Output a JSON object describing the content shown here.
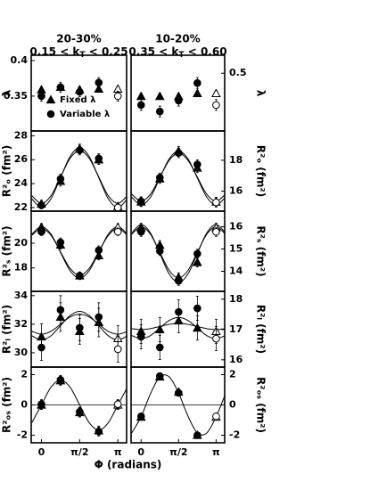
{
  "chart_data": [
    {
      "type": "scatter",
      "title": "20-30%",
      "subtitle": [
        "0.15 < k",
        "T",
        " < 0.25"
      ],
      "ylabel": "λ",
      "yaxis_side": "left",
      "x": [
        0,
        0.785,
        1.571,
        2.356,
        3.142
      ],
      "xlim": [
        -0.42,
        3.5
      ],
      "ylim": [
        0.301,
        0.4075
      ],
      "yticks": [
        0.35,
        0.4
      ],
      "legend": "lower left",
      "series": [
        {
          "name": "Fixed λ",
          "marker": "triangle",
          "color": "#000000",
          "values": [
            0.359,
            0.3625,
            0.359,
            0.36,
            0.36
          ],
          "errors": [
            0.004,
            0.004,
            0.004,
            0.004,
            0.004
          ]
        },
        {
          "name": "Variable λ",
          "marker": "circle",
          "color": "#000000",
          "values": [
            0.35,
            0.3625,
            0.356,
            0.369,
            0.35
          ],
          "errors": [
            0.007,
            0.007,
            0.007,
            0.007,
            0.007
          ]
        }
      ]
    },
    {
      "type": "scatter",
      "title": "10-20%",
      "subtitle": [
        "0.35 < k",
        "T",
        " < 0.60"
      ],
      "ylabel": "λ",
      "yaxis_side": "right",
      "x": [
        0,
        0.785,
        1.571,
        2.356,
        3.142
      ],
      "xlim": [
        -0.42,
        3.5
      ],
      "ylim": [
        0.34,
        0.55
      ],
      "yticks": [
        0.5
      ],
      "series": [
        {
          "marker": "triangle",
          "color": "#000000",
          "values": [
            0.436,
            0.436,
            0.436,
            0.444,
            0.444
          ],
          "errors": [
            0.008,
            0.008,
            0.008,
            0.008,
            0.008
          ]
        },
        {
          "marker": "circle",
          "color": "#000000",
          "values": [
            0.412,
            0.394,
            0.424,
            0.473,
            0.412
          ],
          "errors": [
            0.015,
            0.015,
            0.015,
            0.015,
            0.015
          ]
        }
      ]
    },
    {
      "type": "scatter",
      "ylabel": "R²ₒ (fm²)",
      "yaxis_side": "left",
      "x": [
        0,
        0.785,
        1.571,
        2.356,
        3.142
      ],
      "xlim": [
        -0.42,
        3.5
      ],
      "ylim": [
        21.7,
        28.4
      ],
      "yticks": [
        22,
        24,
        26,
        28
      ],
      "series": [
        {
          "marker": "triangle",
          "color": "#000000",
          "values": [
            22.3,
            24.2,
            26.9,
            26.0,
            22.1
          ],
          "errors": [
            0.3,
            0.4,
            0.4,
            0.4,
            0.3
          ]
        },
        {
          "marker": "circle",
          "color": "#000000",
          "values": [
            22.2,
            24.4,
            26.8,
            26.1,
            22.0
          ],
          "errors": [
            0.3,
            0.4,
            0.4,
            0.4,
            0.3
          ]
        }
      ],
      "fits": [
        {
          "color": "#000000",
          "x": [
            -0.393,
            0,
            0.393,
            0.785,
            1.178,
            1.571,
            1.963,
            2.356,
            2.749,
            3.142,
            3.534
          ],
          "values": [
            22.99,
            22.35,
            22.99,
            24.55,
            26.11,
            26.75,
            26.11,
            24.55,
            22.99,
            22.35,
            22.99
          ]
        },
        {
          "color": "#000000",
          "x": [
            -0.393,
            0,
            0.393,
            0.785,
            1.178,
            1.571,
            1.963,
            2.356,
            2.749,
            3.142,
            3.534
          ],
          "values": [
            22.73,
            22.0,
            22.73,
            24.5,
            26.27,
            27.0,
            26.27,
            24.5,
            22.73,
            22.0,
            22.73
          ]
        }
      ]
    },
    {
      "type": "scatter",
      "ylabel": "R²ₒ (fm²)",
      "yaxis_side": "right",
      "x": [
        0,
        0.785,
        1.571,
        2.356,
        3.142
      ],
      "xlim": [
        -0.42,
        3.5
      ],
      "ylim": [
        14.7,
        19.9
      ],
      "yticks": [
        16,
        18
      ],
      "series": [
        {
          "marker": "triangle",
          "color": "#000000",
          "values": [
            15.3,
            16.8,
            18.6,
            17.5,
            15.3
          ],
          "errors": [
            0.3,
            0.3,
            0.3,
            0.3,
            0.3
          ]
        },
        {
          "marker": "circle",
          "color": "#000000",
          "values": [
            15.33,
            16.87,
            18.47,
            17.73,
            15.27
          ],
          "errors": [
            0.3,
            0.3,
            0.3,
            0.3,
            0.3
          ]
        }
      ],
      "fits": [
        {
          "color": "#000000",
          "x": [
            -0.393,
            0,
            0.393,
            0.785,
            1.178,
            1.571,
            1.963,
            2.356,
            2.749,
            3.142,
            3.534
          ],
          "values": [
            15.8,
            15.35,
            15.8,
            16.9,
            18.0,
            18.45,
            18.0,
            16.9,
            15.8,
            15.35,
            15.8
          ]
        },
        {
          "color": "#000000",
          "x": [
            -0.393,
            0,
            0.393,
            0.785,
            1.178,
            1.571,
            1.963,
            2.356,
            2.749,
            3.142,
            3.534
          ],
          "values": [
            15.61,
            15.1,
            15.61,
            16.85,
            18.09,
            18.6,
            18.09,
            16.85,
            15.61,
            15.1,
            15.61
          ]
        }
      ]
    },
    {
      "type": "scatter",
      "ylabel": "R²ₛ (fm²)",
      "yaxis_side": "left",
      "x": [
        0,
        0.785,
        1.571,
        2.356,
        3.142
      ],
      "xlim": [
        -0.42,
        3.5
      ],
      "ylim": [
        16.1,
        22.6
      ],
      "yticks": [
        18,
        20
      ],
      "series": [
        {
          "marker": "triangle",
          "color": "#000000",
          "values": [
            21.29,
            19.86,
            17.36,
            19.0,
            21.29
          ],
          "errors": [
            0.3,
            0.35,
            0.3,
            0.35,
            0.3
          ]
        },
        {
          "marker": "circle",
          "color": "#000000",
          "values": [
            20.93,
            20.07,
            17.36,
            19.43,
            20.93
          ],
          "errors": [
            0.3,
            0.35,
            0.3,
            0.35,
            0.3
          ]
        }
      ],
      "fits": [
        {
          "color": "#000000",
          "x": [
            -0.393,
            0,
            0.393,
            0.785,
            1.178,
            1.571,
            1.963,
            2.356,
            2.749,
            3.142,
            3.534
          ],
          "values": [
            20.64,
            21.2,
            20.64,
            19.3,
            17.96,
            17.4,
            17.96,
            19.3,
            20.64,
            21.2,
            20.64
          ]
        },
        {
          "color": "#000000",
          "x": [
            -0.393,
            0,
            0.393,
            0.785,
            1.178,
            1.571,
            1.963,
            2.356,
            2.749,
            3.142,
            3.534
          ],
          "values": [
            20.74,
            21.35,
            20.74,
            19.25,
            17.77,
            17.15,
            17.77,
            19.25,
            20.74,
            21.35,
            20.74
          ]
        }
      ]
    },
    {
      "type": "scatter",
      "ylabel": "R²ₛ (fm²)",
      "yaxis_side": "right",
      "x": [
        0,
        0.785,
        1.571,
        2.356,
        3.142
      ],
      "xlim": [
        -0.42,
        3.5
      ],
      "ylim": [
        13.1,
        16.7
      ],
      "yticks": [
        14,
        15,
        16
      ],
      "series": [
        {
          "marker": "triangle",
          "color": "#000000",
          "values": [
            15.96,
            15.18,
            13.73,
            14.4,
            15.96
          ],
          "errors": [
            0.2,
            0.2,
            0.2,
            0.2,
            0.2
          ]
        },
        {
          "marker": "circle",
          "color": "#000000",
          "values": [
            15.77,
            14.91,
            13.57,
            14.79,
            15.77
          ],
          "errors": [
            0.2,
            0.2,
            0.2,
            0.2,
            0.2
          ]
        }
      ],
      "fits": [
        {
          "color": "#000000",
          "x": [
            -0.393,
            0,
            0.393,
            0.785,
            1.178,
            1.571,
            1.963,
            2.356,
            2.749,
            3.142,
            3.534
          ],
          "values": [
            15.66,
            16.0,
            15.66,
            14.85,
            14.04,
            13.7,
            14.04,
            14.85,
            15.66,
            16.0,
            15.66
          ]
        },
        {
          "color": "#000000",
          "x": [
            -0.393,
            0,
            0.393,
            0.785,
            1.178,
            1.571,
            1.963,
            2.356,
            2.749,
            3.142,
            3.534
          ],
          "values": [
            15.72,
            16.1,
            15.72,
            14.8,
            13.88,
            13.5,
            13.88,
            14.8,
            15.72,
            16.1,
            15.72
          ]
        }
      ]
    },
    {
      "type": "scatter",
      "ylabel": "R²ₗ (fm²)",
      "yaxis_side": "left",
      "x": [
        0,
        0.785,
        1.571,
        2.356,
        3.142
      ],
      "xlim": [
        -0.42,
        3.5
      ],
      "ylim": [
        29.0,
        34.3
      ],
      "yticks": [
        30,
        32,
        34
      ],
      "series": [
        {
          "marker": "triangle",
          "color": "#000000",
          "values": [
            31.12,
            32.5,
            31.5,
            32.12,
            31.0
          ],
          "errors": [
            0.9,
            1.0,
            0.9,
            1.0,
            0.9
          ]
        },
        {
          "marker": "circle",
          "color": "#000000",
          "values": [
            30.37,
            33.0,
            31.75,
            32.5,
            30.25
          ],
          "errors": [
            0.9,
            1.0,
            0.9,
            1.0,
            0.9
          ]
        }
      ],
      "fits": [
        {
          "color": "#000000",
          "x": [
            -0.393,
            0,
            0.393,
            0.785,
            1.178,
            1.571,
            1.963,
            2.356,
            2.749,
            3.142,
            3.534
          ],
          "values": [
            31.5,
            31.3,
            31.5,
            32.0,
            32.5,
            32.7,
            32.5,
            32.0,
            31.5,
            31.3,
            31.5
          ]
        },
        {
          "color": "#000000",
          "x": [
            -0.393,
            0,
            0.393,
            0.785,
            1.178,
            1.571,
            1.963,
            2.356,
            2.749,
            3.142,
            3.534
          ],
          "values": [
            31.19,
            30.9,
            31.19,
            31.9,
            32.61,
            32.9,
            32.61,
            31.9,
            31.19,
            30.9,
            31.19
          ]
        }
      ]
    },
    {
      "type": "scatter",
      "ylabel": "R²ₗ (fm²)",
      "yaxis_side": "right",
      "x": [
        0,
        0.785,
        1.571,
        2.356,
        3.142
      ],
      "xlim": [
        -0.42,
        3.5
      ],
      "ylim": [
        15.76,
        18.26
      ],
      "yticks": [
        16,
        17,
        18
      ],
      "series": [
        {
          "marker": "triangle",
          "color": "#000000",
          "values": [
            16.94,
            17.0,
            17.29,
            17.05,
            16.94
          ],
          "errors": [
            0.4,
            0.4,
            0.4,
            0.4,
            0.4
          ]
        },
        {
          "marker": "circle",
          "color": "#000000",
          "values": [
            16.76,
            16.41,
            17.58,
            17.7,
            16.7
          ],
          "errors": [
            0.4,
            0.4,
            0.4,
            0.4,
            0.4
          ]
        }
      ],
      "fits": [
        {
          "color": "#000000",
          "x": [
            -0.393,
            0,
            0.393,
            0.785,
            1.178,
            1.571,
            1.963,
            2.356,
            2.749,
            3.142,
            3.534
          ],
          "values": [
            17.03,
            17.0,
            17.03,
            17.1,
            17.17,
            17.2,
            17.17,
            17.1,
            17.03,
            17.0,
            17.03
          ]
        },
        {
          "color": "#000000",
          "x": [
            -0.393,
            0,
            0.393,
            0.785,
            1.178,
            1.571,
            1.963,
            2.356,
            2.749,
            3.142,
            3.534
          ],
          "values": [
            16.8,
            16.7,
            16.8,
            17.05,
            17.3,
            17.4,
            17.3,
            17.05,
            16.8,
            16.7,
            16.8
          ]
        }
      ]
    },
    {
      "type": "scatter",
      "ylabel": "R²ₒₛ (fm²)",
      "yaxis_side": "left",
      "xlabel": "Φ (radians)",
      "x": [
        0,
        0.785,
        1.571,
        2.356,
        3.142
      ],
      "xlim": [
        -0.42,
        3.5
      ],
      "xticks": [
        0,
        {
          "value": 1.571,
          "label": "π/2"
        },
        {
          "value": 3.142,
          "label": "π"
        }
      ],
      "ylim": [
        -2.5,
        2.5
      ],
      "yticks": [
        -2,
        0,
        2
      ],
      "hline": 0,
      "series": [
        {
          "marker": "triangle",
          "color": "#000000",
          "values": [
            0,
            1.6,
            -0.5,
            -1.7,
            0
          ],
          "errors": [
            0.3,
            0.3,
            0.3,
            0.3,
            0.3
          ]
        },
        {
          "marker": "circle",
          "color": "#000000",
          "values": [
            0.05,
            1.65,
            -0.45,
            -1.75,
            0.05
          ],
          "errors": [
            0.3,
            0.3,
            0.3,
            0.3,
            0.3
          ]
        }
      ],
      "fits": [
        {
          "color": "#000000",
          "x": [
            -0.393,
            0,
            0.393,
            0.785,
            1.178,
            1.571,
            1.963,
            2.356,
            2.749,
            3.142,
            3.534
          ],
          "values": [
            -1.17,
            0,
            1.17,
            1.65,
            1.17,
            0,
            -1.17,
            -1.65,
            -1.17,
            0,
            1.17
          ]
        }
      ]
    },
    {
      "type": "scatter",
      "ylabel": "R²ₒₛ (fm²)",
      "yaxis_side": "right",
      "x": [
        0,
        0.785,
        1.571,
        2.356,
        3.142
      ],
      "xlim": [
        -0.42,
        3.5
      ],
      "xticks": [
        0,
        {
          "value": 1.571,
          "label": "π/2"
        },
        {
          "value": 3.142,
          "label": "π"
        }
      ],
      "ylim": [
        -2.5,
        2.5
      ],
      "yticks": [
        -2,
        0,
        2
      ],
      "hline": 0,
      "series": [
        {
          "marker": "triangle",
          "color": "#000000",
          "values": [
            -0.8,
            1.85,
            0.85,
            -2.0,
            -0.8
          ],
          "errors": [
            0.2,
            0.2,
            0.2,
            0.2,
            0.2
          ]
        },
        {
          "marker": "circle",
          "color": "#000000",
          "values": [
            -0.75,
            1.9,
            0.8,
            -2.0,
            -0.75
          ],
          "errors": [
            0.2,
            0.2,
            0.2,
            0.2,
            0.2
          ]
        }
      ],
      "fits": [
        {
          "color": "#000000",
          "x": [
            -0.393,
            0,
            0.393,
            0.785,
            1.178,
            1.571,
            1.963,
            2.356,
            2.749,
            3.142,
            3.534
          ],
          "values": [
            -1.85,
            -0.78,
            0.74,
            1.85,
            1.85,
            0.78,
            -0.74,
            -1.85,
            -1.85,
            -0.78,
            0.74
          ]
        }
      ]
    }
  ]
}
